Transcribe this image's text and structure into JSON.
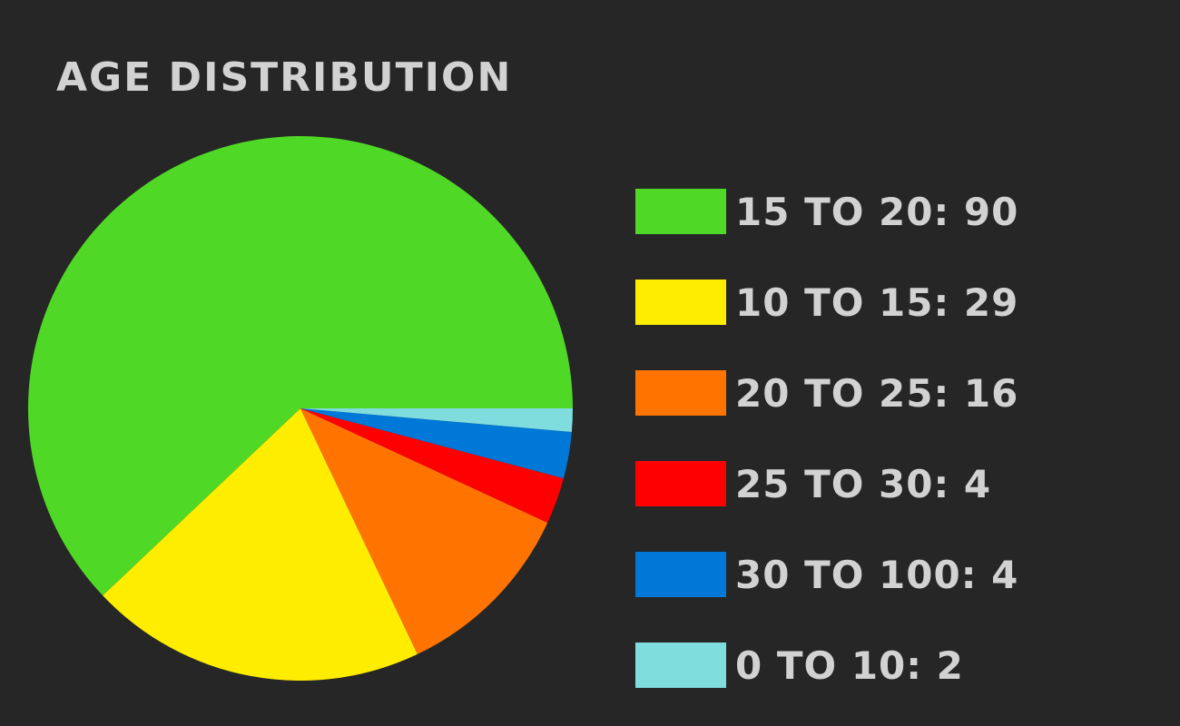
{
  "chart_data": {
    "type": "pie",
    "title": "Age Distribution",
    "start_angle_deg": 0,
    "direction": "counterclockwise",
    "legend_position": "right",
    "slices": [
      {
        "label": "15 to 20",
        "value": 90,
        "color": "#50d826"
      },
      {
        "label": "10 to 15",
        "value": 29,
        "color": "#ffed00"
      },
      {
        "label": "20 to 25",
        "value": 16,
        "color": "#ff7400"
      },
      {
        "label": "25 to 30",
        "value": 4,
        "color": "#ff0000"
      },
      {
        "label": "30 to 100",
        "value": 4,
        "color": "#0078d7"
      },
      {
        "label": "0 to 10",
        "value": 2,
        "color": "#7fdddd"
      }
    ]
  }
}
